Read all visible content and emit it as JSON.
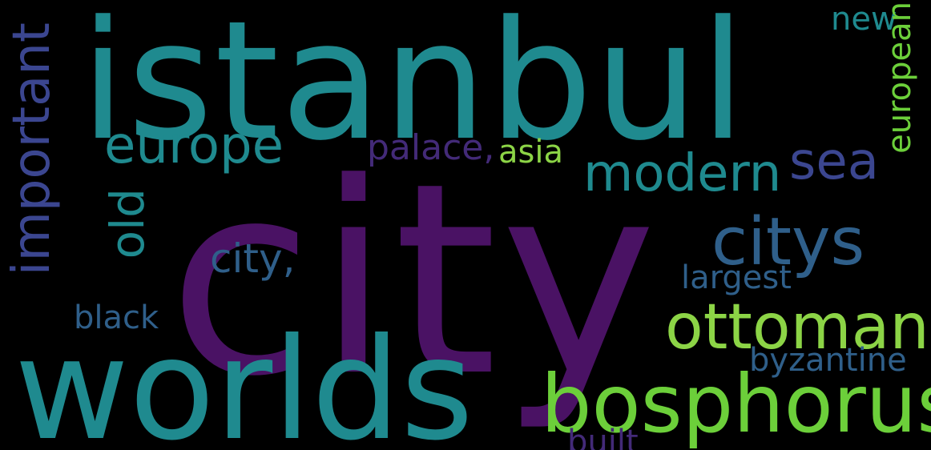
{
  "colors": {
    "background": "#000000",
    "teal": "#1f8a8f",
    "purple": "#4a1264",
    "green": "#6ccf3a",
    "lightgreen": "#8cd446",
    "slate": "#2f5f8a",
    "indigo": "#3b4690",
    "darkviolet": "#432a78"
  },
  "words": {
    "istanbul": "istanbul",
    "city": "city",
    "worlds": "worlds",
    "bosphorus": "bosphorus",
    "ottoman": "ottoman",
    "citys": "citys",
    "europe": "europe",
    "modern": "modern",
    "sea": "sea",
    "palace": "palace,",
    "asia": "asia",
    "city_comma": "city,",
    "largest": "largest",
    "black": "black",
    "byzantine": "byzantine",
    "built": "built",
    "new": "new",
    "important": "important",
    "old": "old",
    "european": "european"
  }
}
